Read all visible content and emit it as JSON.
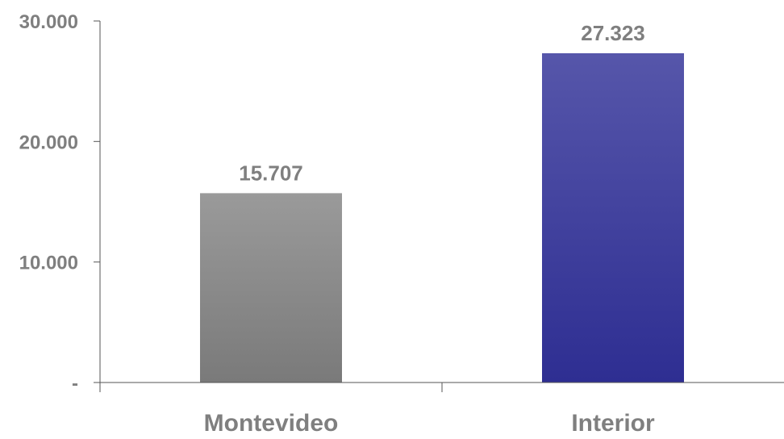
{
  "chart_data": {
    "type": "bar",
    "title": "",
    "xlabel": "",
    "ylabel": "",
    "categories": [
      "Montevideo",
      "Interior"
    ],
    "values": [
      15707,
      27323
    ],
    "value_labels": [
      "15.707",
      "27.323"
    ],
    "ylim": [
      0,
      30000
    ],
    "yticks": [
      0,
      10000,
      20000,
      30000
    ],
    "ytick_labels": [
      "-",
      "10.000",
      "20.000",
      "30.000"
    ],
    "grid": false,
    "legend": "none",
    "bar_colors": [
      {
        "top": "#9a9a9a",
        "bottom": "#7a7a7a"
      },
      {
        "top": "#5656aa",
        "bottom": "#2e2e92"
      }
    ],
    "text_color": "#7f7f7f",
    "axis_color": "#555555"
  }
}
